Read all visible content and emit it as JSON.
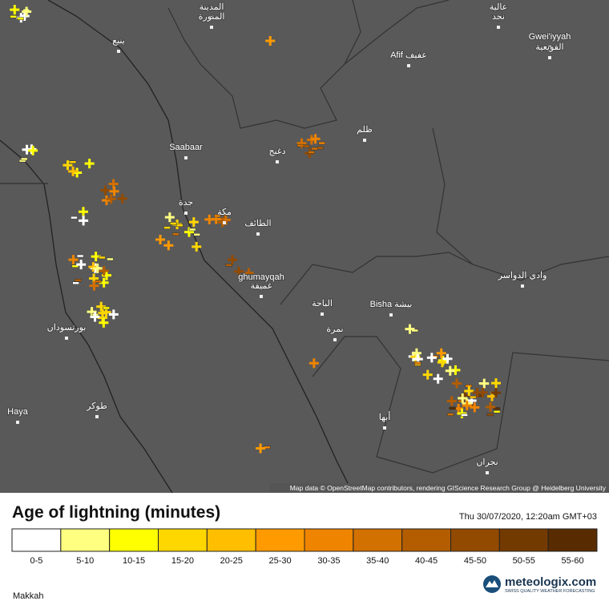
{
  "map": {
    "labels": [
      "المدينة",
      "المنورة",
      "ينبع",
      "عالية",
      "نجد",
      "Gwei'iyyah",
      "القويعية",
      "Afif عفيف",
      "ظلم",
      "Saabaar",
      "دغبج",
      "جدة",
      "مكة",
      "الطائف",
      "ghumayqah",
      "غميقة",
      "وادي الدواسر",
      "الباحة",
      "Bisha بيشة",
      "نمرة",
      "بورتسودان",
      "Haya",
      "طوكر",
      "أبها",
      "نجران"
    ],
    "attribution": "Map data © OpenStreetMap contributors, rendering GIScience Research Group @ Heidelberg University"
  },
  "legend": {
    "title": "Age of lightning (minutes)",
    "timestamp": "Thu 30/07/2020, 12:20am GMT+03",
    "bins": [
      {
        "label": "0-5",
        "color": "#ffffff"
      },
      {
        "label": "5-10",
        "color": "#ffff80"
      },
      {
        "label": "10-15",
        "color": "#ffff00"
      },
      {
        "label": "15-20",
        "color": "#ffd700"
      },
      {
        "label": "20-25",
        "color": "#ffbf00"
      },
      {
        "label": "25-30",
        "color": "#ff9a00"
      },
      {
        "label": "30-35",
        "color": "#ee8400"
      },
      {
        "label": "35-40",
        "color": "#d27000"
      },
      {
        "label": "40-45",
        "color": "#b35d00"
      },
      {
        "label": "45-50",
        "color": "#924a00"
      },
      {
        "label": "50-55",
        "color": "#733a00"
      },
      {
        "label": "55-60",
        "color": "#582c00"
      }
    ]
  },
  "footer": {
    "region": "Makkah",
    "logo": "meteologix.com",
    "tagline": "SWISS QUALITY WEATHER FORECASTING"
  }
}
